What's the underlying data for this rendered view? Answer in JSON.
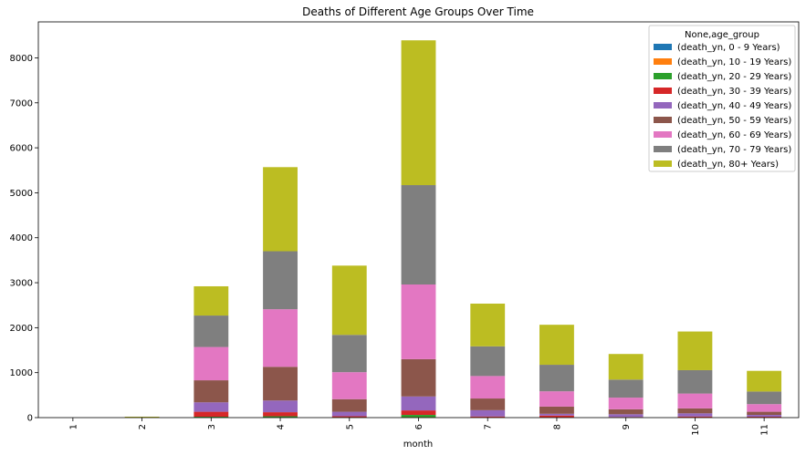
{
  "chart_data": {
    "type": "bar",
    "stacked": true,
    "title": "Deaths of Different Age Groups Over Time",
    "xlabel": "month",
    "ylabel": "",
    "ylim": [
      0,
      8800
    ],
    "yticks": [
      0,
      1000,
      2000,
      3000,
      4000,
      5000,
      6000,
      7000,
      8000
    ],
    "categories": [
      "1",
      "2",
      "3",
      "4",
      "5",
      "6",
      "7",
      "8",
      "9",
      "10",
      "11"
    ],
    "legend": {
      "title": "None,age_group",
      "position": "upper right"
    },
    "grid": false,
    "series": [
      {
        "name": "(death_yn, 0 - 9 Years)",
        "color": "#1f77b4",
        "values": [
          0,
          0,
          0,
          0,
          0,
          0,
          0,
          0,
          0,
          0,
          0
        ]
      },
      {
        "name": "(death_yn, 10 - 19 Years)",
        "color": "#ff7f0e",
        "values": [
          0,
          0,
          0,
          0,
          0,
          10,
          0,
          0,
          0,
          0,
          0
        ]
      },
      {
        "name": "(death_yn, 20 - 29 Years)",
        "color": "#2ca02c",
        "values": [
          0,
          0,
          20,
          30,
          10,
          50,
          5,
          5,
          5,
          5,
          5
        ]
      },
      {
        "name": "(death_yn, 30 - 39 Years)",
        "color": "#d62728",
        "values": [
          0,
          0,
          110,
          90,
          20,
          100,
          20,
          40,
          10,
          20,
          15
        ]
      },
      {
        "name": "(death_yn, 40 - 49 Years)",
        "color": "#9467bd",
        "values": [
          0,
          0,
          210,
          260,
          100,
          310,
          140,
          40,
          60,
          70,
          40
        ]
      },
      {
        "name": "(death_yn, 50 - 59 Years)",
        "color": "#8c564b",
        "values": [
          0,
          0,
          490,
          750,
          280,
          830,
          260,
          160,
          110,
          110,
          70
        ]
      },
      {
        "name": "(death_yn, 60 - 69 Years)",
        "color": "#e377c2",
        "values": [
          0,
          0,
          740,
          1280,
          600,
          1660,
          500,
          340,
          260,
          330,
          170
        ]
      },
      {
        "name": "(death_yn, 70 - 79 Years)",
        "color": "#7f7f7f",
        "values": [
          0,
          0,
          700,
          1290,
          830,
          2210,
          660,
          590,
          400,
          520,
          280
        ]
      },
      {
        "name": "(death_yn, 80+ Years)",
        "color": "#bcbd22",
        "values": [
          0,
          20,
          650,
          1870,
          1540,
          3220,
          950,
          890,
          570,
          860,
          460
        ]
      }
    ]
  }
}
